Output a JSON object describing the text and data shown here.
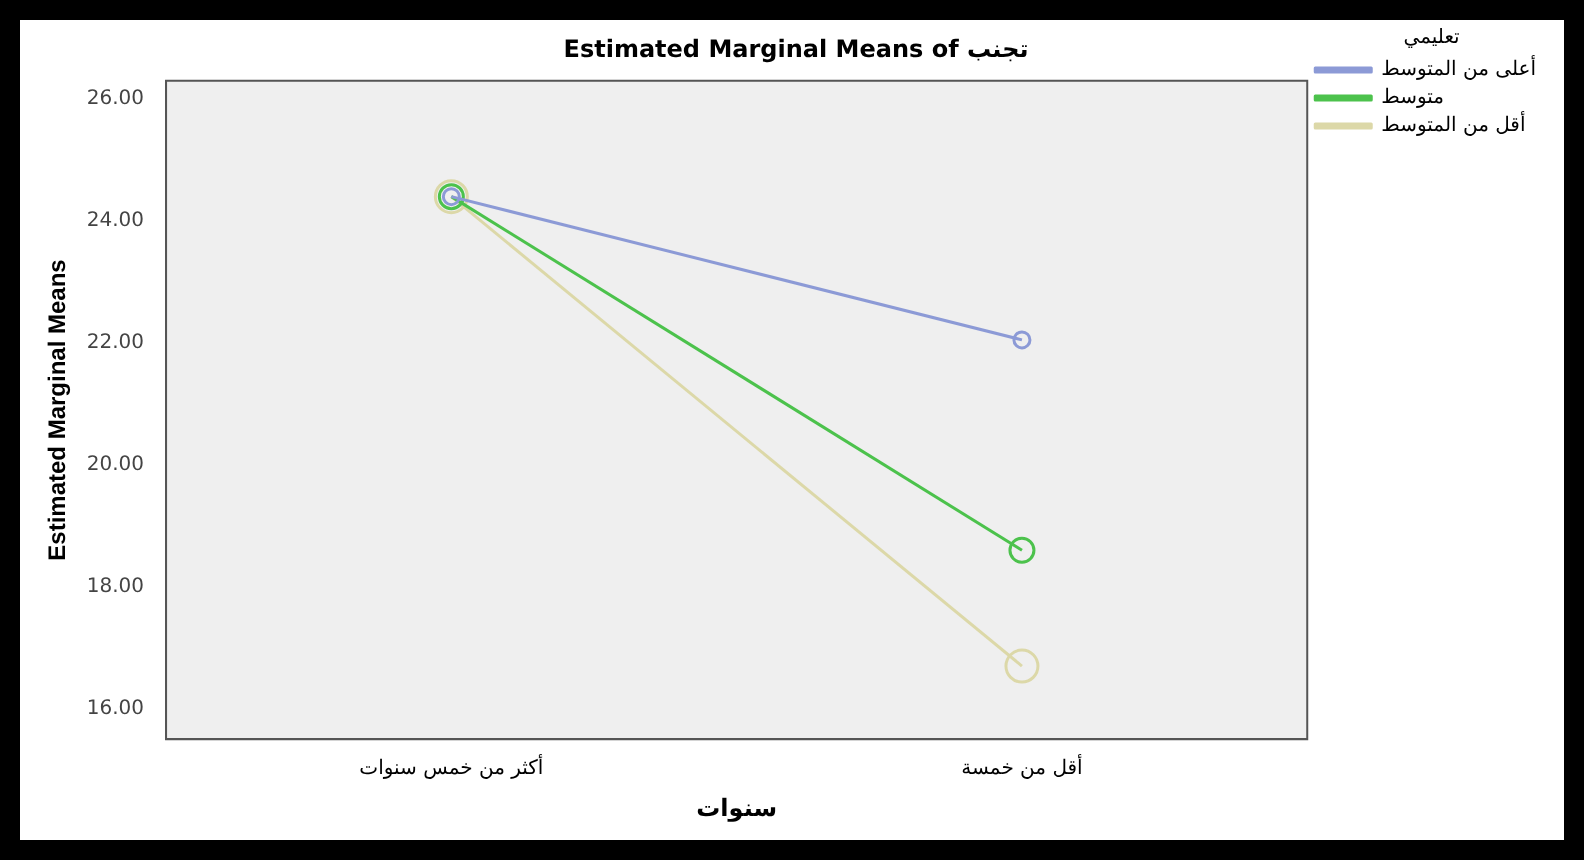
{
  "chart_data": {
    "type": "line",
    "title": "Estimated Marginal Means of تجنب",
    "xlabel": "سنوات",
    "ylabel": "Estimated Marginal Means",
    "legend_title": "تعليمي",
    "categories": [
      "أكثر من خمس سنوات",
      "أقل من خمسة"
    ],
    "series": [
      {
        "name": "أعلى من المتوسط",
        "color": "#8c9ad6",
        "values": [
          24.4,
          22.05
        ]
      },
      {
        "name": "متوسط",
        "color": "#4cc24c",
        "values": [
          24.4,
          18.6
        ]
      },
      {
        "name": "أقل من المتوسط",
        "color": "#dcd8a8",
        "values": [
          24.4,
          16.7
        ]
      }
    ],
    "ylim": [
      15.5,
      26.3
    ],
    "yticks": [
      {
        "value": 16,
        "label": "16.00"
      },
      {
        "value": 18,
        "label": "18.00"
      },
      {
        "value": 20,
        "label": "20.00"
      },
      {
        "value": 22,
        "label": "22.00"
      },
      {
        "value": 24,
        "label": "24.00"
      },
      {
        "value": 26,
        "label": "26.00"
      }
    ],
    "grid": false,
    "legend": "top right",
    "marker": "circle",
    "line_style": "solid"
  }
}
